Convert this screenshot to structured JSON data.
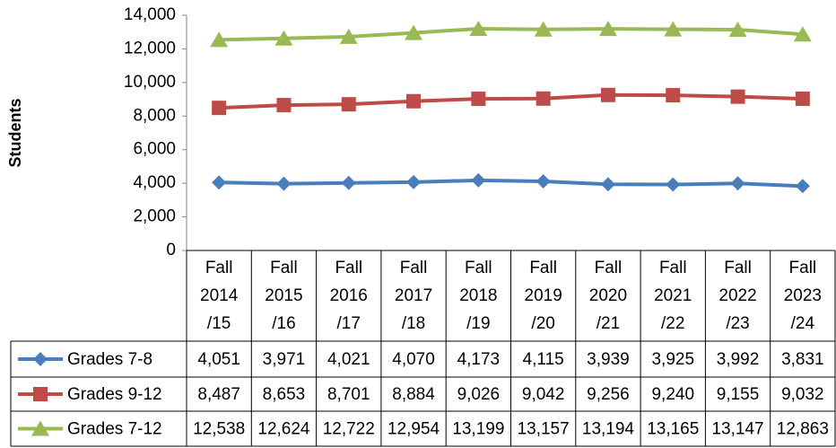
{
  "chart_data": {
    "type": "line",
    "y_label": "Students",
    "categories": [
      "Fall 2014 /15",
      "Fall 2015 /16",
      "Fall 2016 /17",
      "Fall 2017 /18",
      "Fall 2018 /19",
      "Fall 2019 /20",
      "Fall 2020 /21",
      "Fall 2021 /22",
      "Fall 2022 /23",
      "Fall 2023 /24"
    ],
    "series": [
      {
        "name": "Grades 7-8",
        "color": "#4a7ebb",
        "marker": "diamond",
        "values": [
          4051,
          3971,
          4021,
          4070,
          4173,
          4115,
          3939,
          3925,
          3992,
          3831
        ],
        "value_labels": [
          "4,051",
          "3,971",
          "4,021",
          "4,070",
          "4,173",
          "4,115",
          "3,939",
          "3,925",
          "3,992",
          "3,831"
        ]
      },
      {
        "name": "Grades 9-12",
        "color": "#be4b48",
        "marker": "square",
        "values": [
          8487,
          8653,
          8701,
          8884,
          9026,
          9042,
          9256,
          9240,
          9155,
          9032
        ],
        "value_labels": [
          "8,487",
          "8,653",
          "8,701",
          "8,884",
          "9,026",
          "9,042",
          "9,256",
          "9,240",
          "9,155",
          "9,032"
        ]
      },
      {
        "name": "Grades 7-12",
        "color": "#98b954",
        "marker": "triangle",
        "values": [
          12538,
          12624,
          12722,
          12954,
          13199,
          13157,
          13194,
          13165,
          13147,
          12863
        ],
        "value_labels": [
          "12,538",
          "12,624",
          "12,722",
          "12,954",
          "13,199",
          "13,157",
          "13,194",
          "13,165",
          "13,147",
          "12,863"
        ]
      }
    ],
    "ylim": [
      0,
      14000
    ],
    "yticks": [
      0,
      {
        "value": 2000,
        "label": "2,000"
      },
      {
        "value": 4000,
        "label": "4,000"
      },
      {
        "value": 6000,
        "label": "6,000"
      },
      {
        "value": 8000,
        "label": "8,000"
      },
      {
        "value": 10000,
        "label": "10,000"
      },
      {
        "value": 12000,
        "label": "12,000"
      },
      {
        "value": 14000,
        "label": "14,000"
      }
    ],
    "grid": false
  }
}
